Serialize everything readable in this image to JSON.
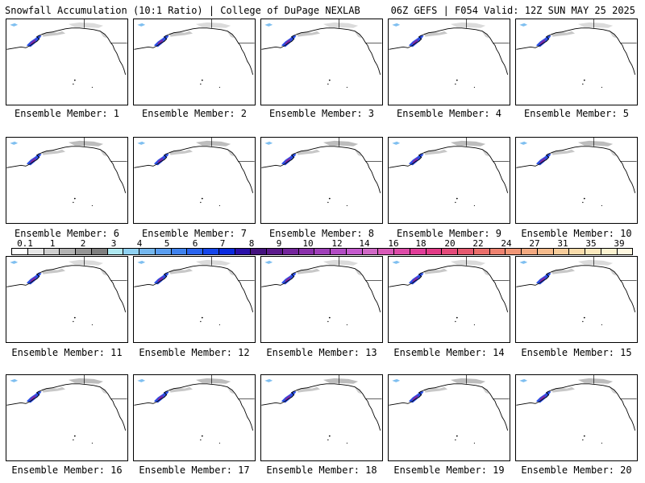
{
  "header": {
    "title_left": "Snowfall Accumulation (10:1 Ratio) | College of DuPage NEXLAB",
    "title_right": "06Z GEFS | F054 Valid: 12Z SUN MAY 25 2025"
  },
  "legend": {
    "labels": [
      "0.1",
      "1",
      "2",
      "3",
      "4",
      "5",
      "6",
      "7",
      "8",
      "9",
      "10",
      "12",
      "14",
      "16",
      "18",
      "20",
      "22",
      "24",
      "27",
      "31",
      "35",
      "39"
    ],
    "colors": [
      "#ffffff",
      "#e6e6e6",
      "#cfcfcf",
      "#b3b3b3",
      "#969696",
      "#7f7f7f",
      "#aee8f0",
      "#8fd1f2",
      "#74b7ee",
      "#5a9ef0",
      "#3f82ee",
      "#2a64ee",
      "#1646ea",
      "#0a2adf",
      "#2a10a8",
      "#44127e",
      "#5c1a8c",
      "#74259c",
      "#8a30ab",
      "#9f3fb9",
      "#b24cc4",
      "#c55ace",
      "#d068c6",
      "#d85ab8",
      "#dd4ba8",
      "#e03c98",
      "#e23a86",
      "#e44a7a",
      "#e65a70",
      "#ea6e6a",
      "#ee8270",
      "#f19676",
      "#f3a980",
      "#f5bb8c",
      "#f7cc9a",
      "#f9dcab",
      "#fbe9bd",
      "#fdf3d0",
      "#fff8e0"
    ]
  },
  "members": [
    {
      "label": "Ensemble Member: 1"
    },
    {
      "label": "Ensemble Member: 2"
    },
    {
      "label": "Ensemble Member: 3"
    },
    {
      "label": "Ensemble Member: 4"
    },
    {
      "label": "Ensemble Member: 5"
    },
    {
      "label": "Ensemble Member: 6"
    },
    {
      "label": "Ensemble Member: 7"
    },
    {
      "label": "Ensemble Member: 8"
    },
    {
      "label": "Ensemble Member: 9"
    },
    {
      "label": "Ensemble Member: 10"
    },
    {
      "label": "Ensemble Member: 11"
    },
    {
      "label": "Ensemble Member: 12"
    },
    {
      "label": "Ensemble Member: 13"
    },
    {
      "label": "Ensemble Member: 14"
    },
    {
      "label": "Ensemble Member: 15"
    },
    {
      "label": "Ensemble Member: 16"
    },
    {
      "label": "Ensemble Member: 17"
    },
    {
      "label": "Ensemble Member: 18"
    },
    {
      "label": "Ensemble Member: 19"
    },
    {
      "label": "Ensemble Member: 20"
    }
  ]
}
